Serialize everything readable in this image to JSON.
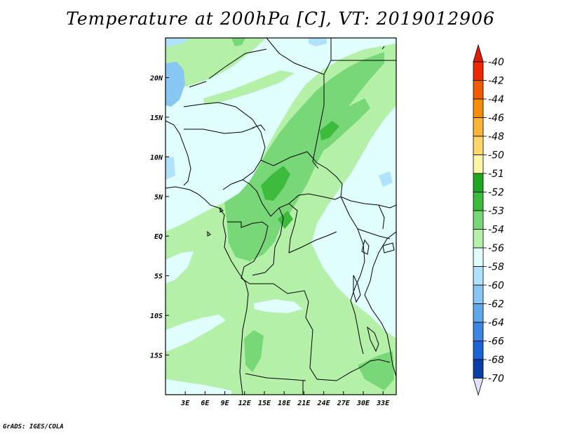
{
  "title": "Temperature at 200hPa [C], VT: 2019012906",
  "credit": "GrADS: IGES/COLA",
  "map": {
    "lat_range": [
      -20,
      25
    ],
    "lon_range": [
      0,
      35
    ],
    "lat_ticks": [
      {
        "value": 20,
        "label": "20N"
      },
      {
        "value": 15,
        "label": "15N"
      },
      {
        "value": 10,
        "label": "10N"
      },
      {
        "value": 5,
        "label": "5N"
      },
      {
        "value": 0,
        "label": "EQ"
      },
      {
        "value": -5,
        "label": "5S"
      },
      {
        "value": -10,
        "label": "10S"
      },
      {
        "value": -15,
        "label": "15S"
      }
    ],
    "lon_ticks": [
      {
        "value": 3,
        "label": "3E"
      },
      {
        "value": 6,
        "label": "6E"
      },
      {
        "value": 9,
        "label": "9E"
      },
      {
        "value": 12,
        "label": "12E"
      },
      {
        "value": 15,
        "label": "15E"
      },
      {
        "value": 18,
        "label": "18E"
      },
      {
        "value": 21,
        "label": "21E"
      },
      {
        "value": 24,
        "label": "24E"
      },
      {
        "value": 27,
        "label": "27E"
      },
      {
        "value": 30,
        "label": "30E"
      },
      {
        "value": 33,
        "label": "33E"
      }
    ],
    "field_colors": {
      "c_m51": "#3dbb3d",
      "c_m52": "#78d878",
      "c_m53": "#b4f0a8",
      "c_m54": "#e1fefe",
      "c_m56": "#b0e2fb",
      "c_m58": "#88c6f4"
    }
  },
  "colorbar": {
    "levels": [
      {
        "label": "-40",
        "color": "#ee2800"
      },
      {
        "label": "-42",
        "color": "#f25a00"
      },
      {
        "label": "-44",
        "color": "#f78d00"
      },
      {
        "label": "-46",
        "color": "#fbb33a"
      },
      {
        "label": "-48",
        "color": "#fdd66a"
      },
      {
        "label": "-50",
        "color": "#fff5a8"
      },
      {
        "label": "-51",
        "color": "#1fa81f"
      },
      {
        "label": "-52",
        "color": "#3dbb3d"
      },
      {
        "label": "-53",
        "color": "#78d878"
      },
      {
        "label": "-54",
        "color": "#b4f0a8"
      },
      {
        "label": "-56",
        "color": "#e1fefe"
      },
      {
        "label": "-58",
        "color": "#b0e2fb"
      },
      {
        "label": "-60",
        "color": "#88c6f4"
      },
      {
        "label": "-62",
        "color": "#60a8ec"
      },
      {
        "label": "-64",
        "color": "#3b86e3"
      },
      {
        "label": "-66",
        "color": "#1a64d4"
      },
      {
        "label": "-68",
        "color": "#0a3fa8"
      },
      {
        "label": "-70",
        "color": "#0a1a6e"
      }
    ],
    "top_color": "#e01e00",
    "bottom_color": "#e0e0f8"
  }
}
